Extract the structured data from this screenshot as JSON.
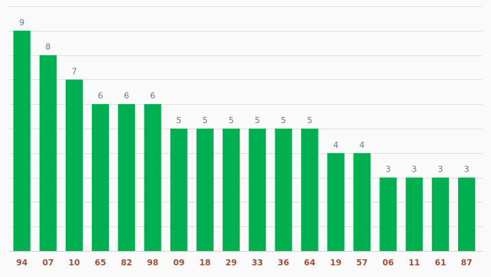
{
  "chart_data": {
    "type": "bar",
    "title": "",
    "xlabel": "",
    "ylabel": "",
    "categories": [
      "94",
      "07",
      "10",
      "65",
      "82",
      "98",
      "09",
      "18",
      "29",
      "33",
      "36",
      "64",
      "19",
      "57",
      "06",
      "11",
      "61",
      "87"
    ],
    "values": [
      9,
      8,
      7,
      6,
      6,
      6,
      5,
      5,
      5,
      5,
      5,
      5,
      4,
      4,
      3,
      3,
      3,
      3
    ],
    "ylim": [
      0,
      10
    ],
    "grid": true,
    "legend": "none",
    "colors": {
      "bar": "#00b050",
      "value_label": "#5e7f93",
      "category_label": "#a0523c",
      "grid": "#dedede",
      "background": "#fafafa"
    }
  }
}
